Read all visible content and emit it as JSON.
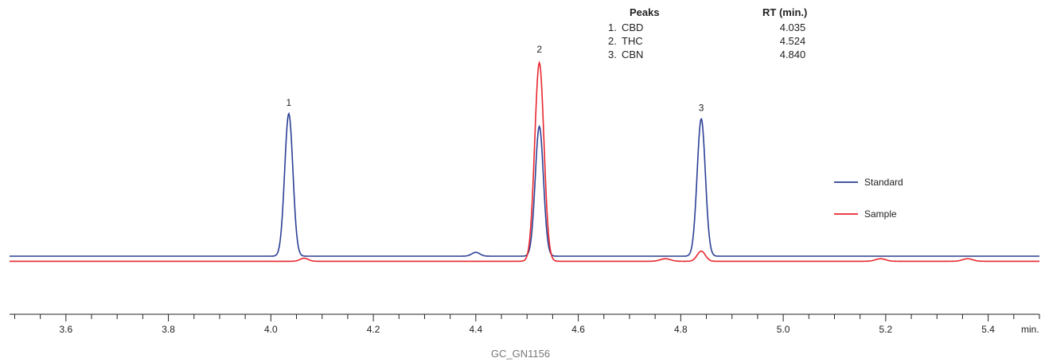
{
  "chart_data": {
    "type": "line",
    "xlabel": "min.",
    "xlim": [
      3.49,
      5.5
    ],
    "ylim": [
      0,
      1.0
    ],
    "x_ticks": [
      3.6,
      3.8,
      4.0,
      4.2,
      4.4,
      4.6,
      4.8,
      5.0,
      5.2,
      5.4
    ],
    "x_tick_labels": [
      "3.6",
      "3.8",
      "4.0",
      "4.2",
      "4.4",
      "4.6",
      "4.8",
      "5.0",
      "5.2",
      "5.4"
    ],
    "grid": false,
    "legend_position": "right",
    "series": [
      {
        "name": "Standard",
        "color": "#2b3f94",
        "baseline": 0.0,
        "peaks": [
          {
            "rt": 4.035,
            "height": 0.56,
            "width": 0.008
          },
          {
            "rt": 4.4,
            "height": 0.015,
            "width": 0.008
          },
          {
            "rt": 4.524,
            "height": 0.51,
            "width": 0.008
          },
          {
            "rt": 4.84,
            "height": 0.54,
            "width": 0.008
          }
        ]
      },
      {
        "name": "Sample",
        "color": "#e8262d",
        "baseline": -0.02,
        "peaks": [
          {
            "rt": 4.065,
            "height": 0.012,
            "width": 0.008
          },
          {
            "rt": 4.524,
            "height": 0.78,
            "width": 0.009
          },
          {
            "rt": 4.77,
            "height": 0.01,
            "width": 0.01
          },
          {
            "rt": 4.84,
            "height": 0.04,
            "width": 0.008
          },
          {
            "rt": 5.19,
            "height": 0.01,
            "width": 0.01
          },
          {
            "rt": 5.36,
            "height": 0.01,
            "width": 0.01
          }
        ]
      }
    ],
    "peak_labels": [
      {
        "text": "1",
        "x": 4.035,
        "y": 0.59
      },
      {
        "text": "2",
        "x": 4.524,
        "y": 0.8
      },
      {
        "text": "3",
        "x": 4.84,
        "y": 0.57
      }
    ],
    "peak_table": {
      "header_peaks": "Peaks",
      "header_rt": "RT (min.)",
      "rows": [
        {
          "num": "1.",
          "name": "CBD",
          "rt": "4.035"
        },
        {
          "num": "2.",
          "name": "THC",
          "rt": "4.524"
        },
        {
          "num": "3.",
          "name": "CBN",
          "rt": "4.840"
        }
      ]
    }
  },
  "caption": "GC_GN1156"
}
